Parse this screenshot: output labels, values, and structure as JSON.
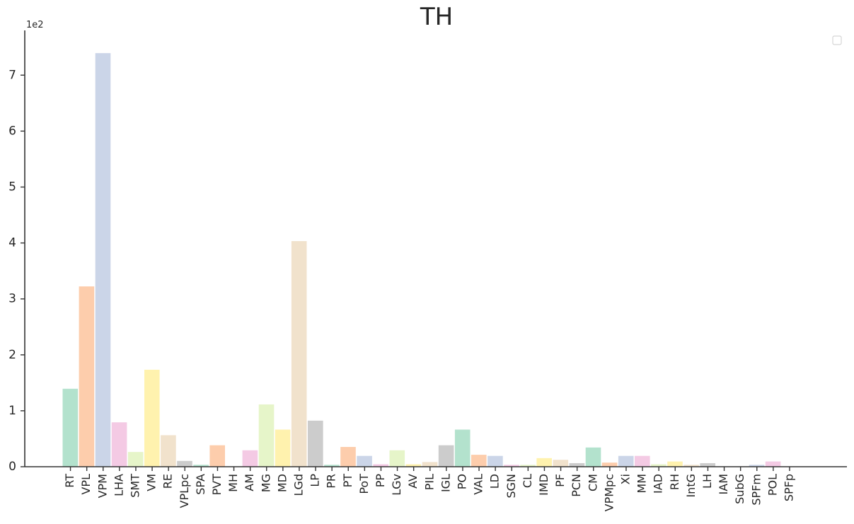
{
  "chart_data": {
    "type": "bar",
    "title": "TH",
    "xlabel": "",
    "ylabel": "",
    "y_offset_label": "1e2",
    "ylim": [
      0,
      7.8
    ],
    "yticks": [
      "0",
      "1",
      "2",
      "3",
      "4",
      "5",
      "6",
      "7"
    ],
    "grid": false,
    "legend": "top-right (empty)",
    "categories": [
      "RT",
      "VPL",
      "VPM",
      "LHA",
      "SMT",
      "VM",
      "RE",
      "VPLpc",
      "SPA",
      "PVT",
      "MH",
      "AM",
      "MG",
      "MD",
      "LGd",
      "LP",
      "PR",
      "PT",
      "PoT",
      "PP",
      "LGv",
      "AV",
      "PIL",
      "IGL",
      "PO",
      "VAL",
      "LD",
      "SGN",
      "CL",
      "IMD",
      "PF",
      "PCN",
      "CM",
      "VPMpc",
      "Xi",
      "MM",
      "IAD",
      "RH",
      "IntG",
      "LH",
      "IAM",
      "SubG",
      "SPFm",
      "POL",
      "SPFp"
    ],
    "values": [
      1.4,
      3.23,
      7.4,
      0.8,
      0.27,
      1.74,
      0.57,
      0.11,
      0.04,
      0.39,
      0,
      0.3,
      1.12,
      0.67,
      4.04,
      0.83,
      0.04,
      0.36,
      0.2,
      0.05,
      0.3,
      0.05,
      0.09,
      0.39,
      0.67,
      0.22,
      0.2,
      0.04,
      0.04,
      0.16,
      0.13,
      0.07,
      0.35,
      0.08,
      0.2,
      0.2,
      0.05,
      0.1,
      0.04,
      0.07,
      0,
      0,
      0.04,
      0.1,
      0
    ],
    "colors": [
      "#b3e2cd",
      "#fdcdac",
      "#cbd5e8",
      "#f4cae4",
      "#e6f5c9",
      "#fff2ae",
      "#f1e2cc",
      "#cccccc"
    ]
  }
}
